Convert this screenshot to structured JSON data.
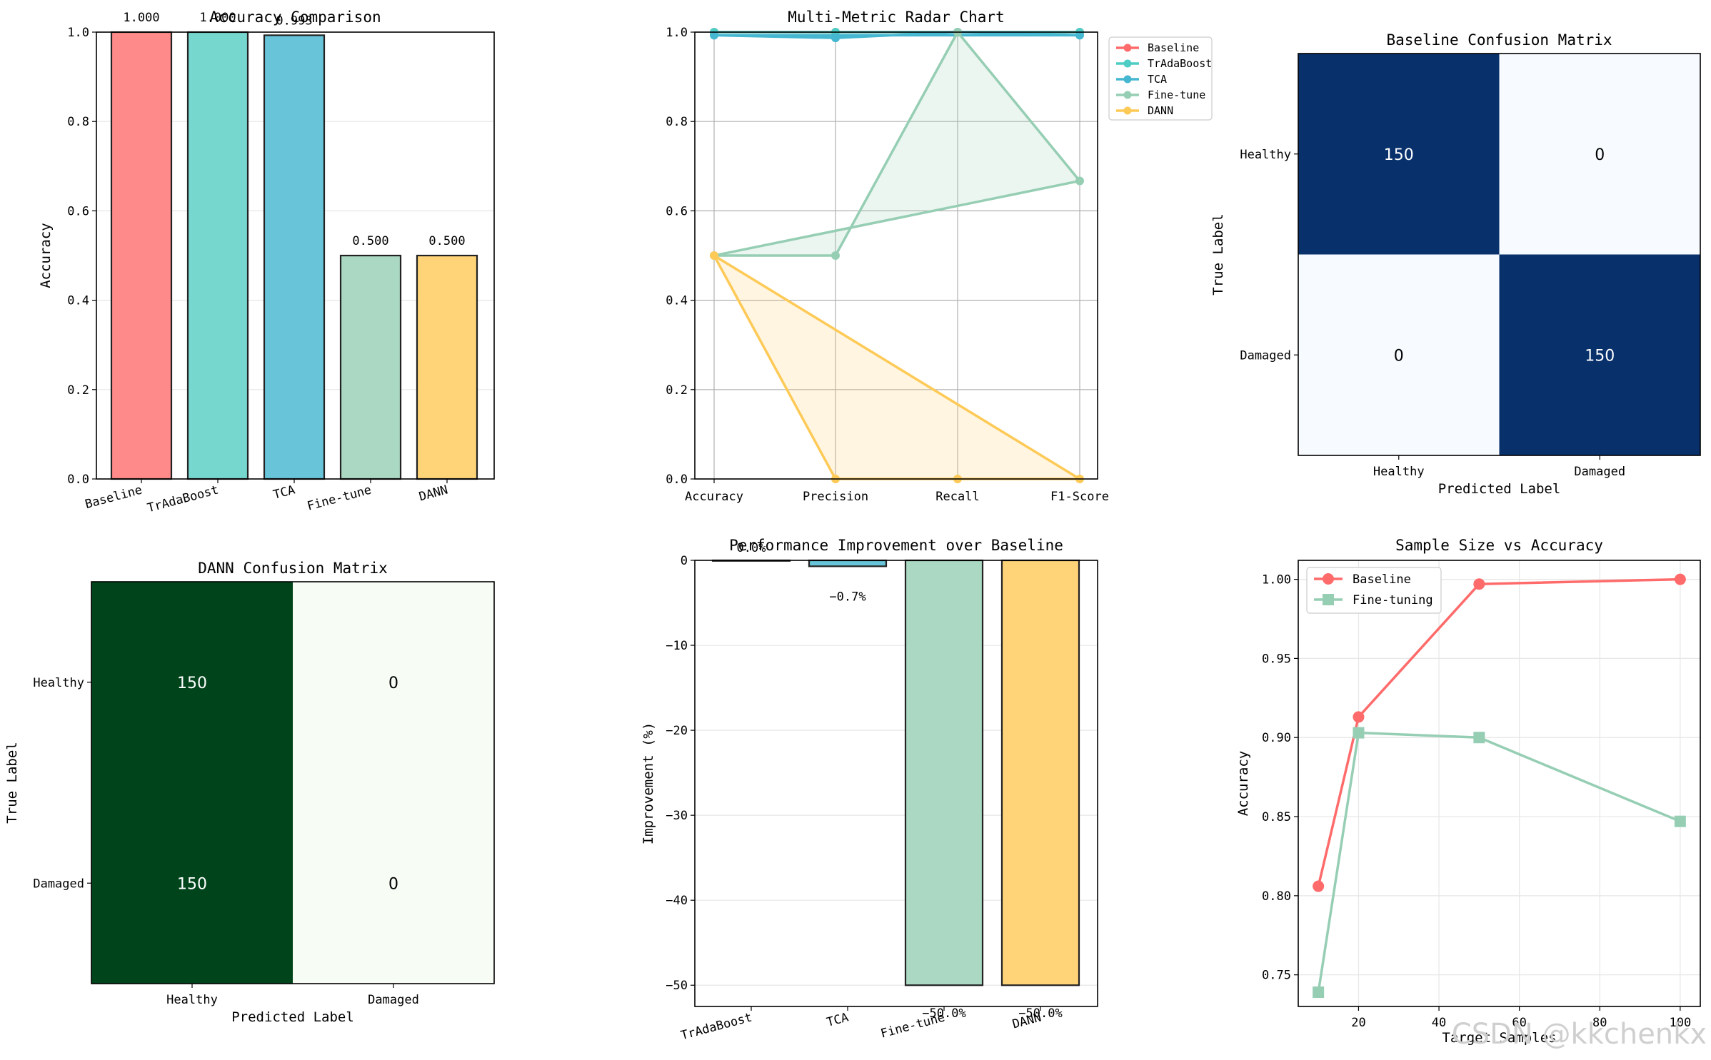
{
  "chart_data": [
    {
      "id": "accuracy",
      "type": "bar",
      "title": "Accuracy Comparison",
      "ylabel": "Accuracy",
      "xlabel": "",
      "ylim": [
        0,
        1
      ],
      "yticks": [
        "0.0",
        "0.2",
        "0.4",
        "0.6",
        "0.8",
        "1.0"
      ],
      "categories": [
        "Baseline",
        "TrAdaBoost",
        "TCA",
        "Fine-tune",
        "DANN"
      ],
      "values": [
        1.0,
        1.0,
        0.993,
        0.5,
        0.5
      ],
      "value_labels": [
        "1.000",
        "1.000",
        "0.993",
        "0.500",
        "0.500"
      ],
      "colors": [
        "#ff8a8a",
        "#76d7cf",
        "#68c4d9",
        "#aad8c2",
        "#ffd478"
      ],
      "grid": true
    },
    {
      "id": "radar",
      "type": "line",
      "title": "Multi-Metric Radar Chart",
      "categories": [
        "Accuracy",
        "Precision",
        "Recall",
        "F1-Score"
      ],
      "ylim": [
        0,
        1
      ],
      "yticks": [
        "0.0",
        "0.2",
        "0.4",
        "0.6",
        "0.8",
        "1.0"
      ],
      "legend_position": "outside-top-right",
      "series": [
        {
          "name": "Baseline",
          "values": [
            1.0,
            1.0,
            1.0,
            1.0
          ],
          "color": "#ff6b6b"
        },
        {
          "name": "TrAdaBoost",
          "values": [
            1.0,
            1.0,
            1.0,
            1.0
          ],
          "color": "#4ecdc4"
        },
        {
          "name": "TCA",
          "values": [
            0.993,
            0.987,
            1.0,
            0.993
          ],
          "color": "#45b7d1"
        },
        {
          "name": "Fine-tune",
          "values": [
            0.5,
            0.5,
            1.0,
            0.667
          ],
          "color": "#96ceb4"
        },
        {
          "name": "DANN",
          "values": [
            0.5,
            0.0,
            0.0,
            0.0
          ],
          "color": "#feca57"
        }
      ],
      "grid": true
    },
    {
      "id": "baseline-cm",
      "type": "heatmap",
      "title": "Baseline Confusion Matrix",
      "xlabel": "Predicted Label",
      "ylabel": "True Label",
      "x_categories": [
        "Healthy",
        "Damaged"
      ],
      "y_categories": [
        "Healthy",
        "Damaged"
      ],
      "values": [
        [
          150,
          0
        ],
        [
          0,
          150
        ]
      ],
      "colormap": [
        "#f7fbff",
        "#08306b"
      ]
    },
    {
      "id": "dann-cm",
      "type": "heatmap",
      "title": "DANN Confusion Matrix",
      "xlabel": "Predicted Label",
      "ylabel": "True Label",
      "x_categories": [
        "Healthy",
        "Damaged"
      ],
      "y_categories": [
        "Healthy",
        "Damaged"
      ],
      "values": [
        [
          150,
          0
        ],
        [
          150,
          0
        ]
      ],
      "colormap": [
        "#f7fcf5",
        "#00441b"
      ]
    },
    {
      "id": "improvement",
      "type": "bar",
      "title": "Performance Improvement over Baseline",
      "ylabel": "Improvement (%)",
      "xlabel": "",
      "ylim": [
        -52.5,
        0
      ],
      "yticks": [
        "0",
        "−10",
        "−20",
        "−30",
        "−40",
        "−50"
      ],
      "categories": [
        "TrAdaBoost",
        "TCA",
        "Fine-tune",
        "DANN"
      ],
      "values": [
        0.0,
        -0.7,
        -50.0,
        -50.0
      ],
      "value_labels": [
        "0.0%",
        "−0.7%",
        "−50.0%",
        "−50.0%"
      ],
      "colors": [
        "#76d7cf",
        "#68c4d9",
        "#aad8c2",
        "#ffd478"
      ],
      "grid": true
    },
    {
      "id": "sample-size",
      "type": "line",
      "title": "Sample Size vs Accuracy",
      "xlabel": "Target Samples",
      "ylabel": "Accuracy",
      "x": [
        10,
        20,
        50,
        100
      ],
      "xlim": [
        5,
        105
      ],
      "ylim": [
        0.73,
        1.012
      ],
      "xticks": [
        "20",
        "40",
        "60",
        "80",
        "100"
      ],
      "yticks": [
        "0.75",
        "0.80",
        "0.85",
        "0.90",
        "0.95",
        "1.00"
      ],
      "legend_position": "upper-left",
      "series": [
        {
          "name": "Baseline",
          "values": [
            0.806,
            0.913,
            0.997,
            1.0
          ],
          "color": "#ff6b6b",
          "marker": "circle"
        },
        {
          "name": "Fine-tuning",
          "values": [
            0.739,
            0.903,
            0.9,
            0.847
          ],
          "color": "#96ceb4",
          "marker": "square"
        }
      ],
      "grid": true
    }
  ],
  "watermark": "CSDN @kkchenkx"
}
